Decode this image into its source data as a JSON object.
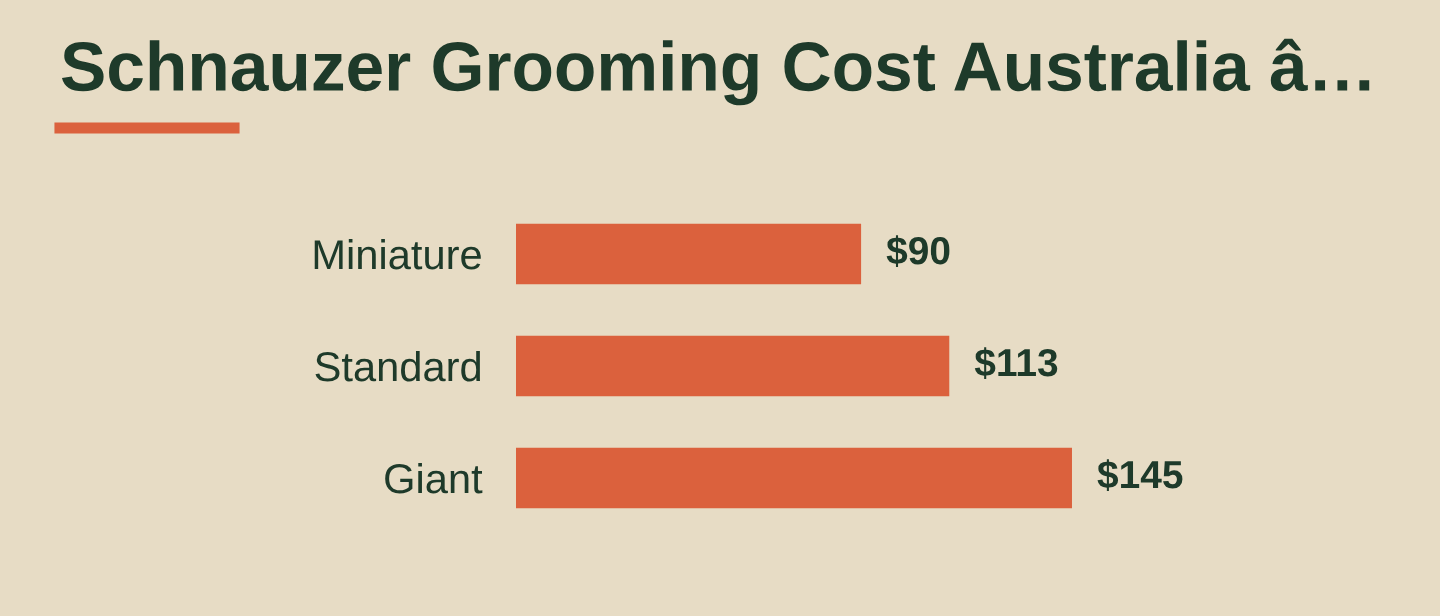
{
  "chart_data": {
    "type": "bar",
    "orientation": "horizontal",
    "title": "Schnauzer Grooming Cost Australia â…",
    "categories": [
      "Miniature",
      "Standard",
      "Giant"
    ],
    "values": [
      90,
      113,
      145
    ],
    "color": "#db613d",
    "value_labels": [
      "$90",
      "$113",
      "$145"
    ]
  }
}
